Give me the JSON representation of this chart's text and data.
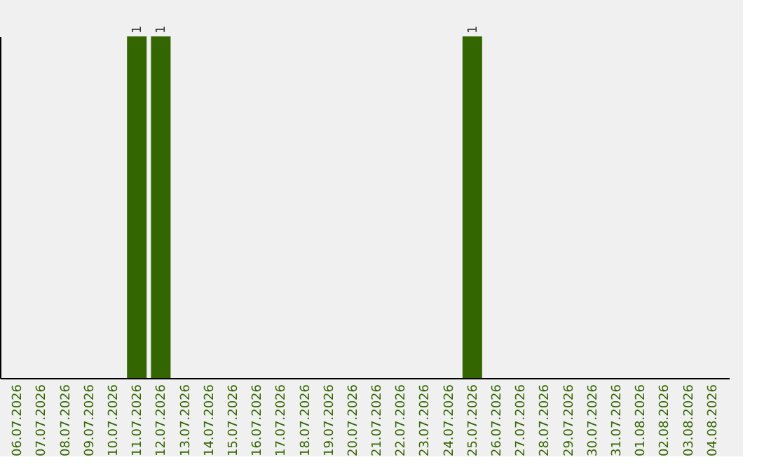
{
  "chart_data": {
    "type": "bar",
    "categories": [
      "06.07.2026",
      "07.07.2026",
      "08.07.2026",
      "09.07.2026",
      "10.07.2026",
      "11.07.2026",
      "12.07.2026",
      "13.07.2026",
      "14.07.2026",
      "15.07.2026",
      "16.07.2026",
      "17.07.2026",
      "18.07.2026",
      "19.07.2026",
      "20.07.2026",
      "21.07.2026",
      "22.07.2026",
      "23.07.2026",
      "24.07.2026",
      "25.07.2026",
      "26.07.2026",
      "27.07.2026",
      "28.07.2026",
      "29.07.2026",
      "30.07.2026",
      "31.07.2026",
      "01.08.2026",
      "02.08.2026",
      "03.08.2026",
      "04.08.2026"
    ],
    "values": [
      0,
      0,
      0,
      0,
      0,
      1,
      1,
      0,
      0,
      0,
      0,
      0,
      0,
      0,
      0,
      0,
      0,
      0,
      0,
      1,
      0,
      0,
      0,
      0,
      0,
      0,
      0,
      0,
      0,
      0
    ],
    "value_labels": [
      null,
      null,
      null,
      null,
      null,
      "1",
      "1",
      null,
      null,
      null,
      null,
      null,
      null,
      null,
      null,
      null,
      null,
      null,
      null,
      "1",
      null,
      null,
      null,
      null,
      null,
      null,
      null,
      null,
      null,
      null
    ],
    "color": "#336600",
    "tick_labels": "x",
    "grid": false
  }
}
